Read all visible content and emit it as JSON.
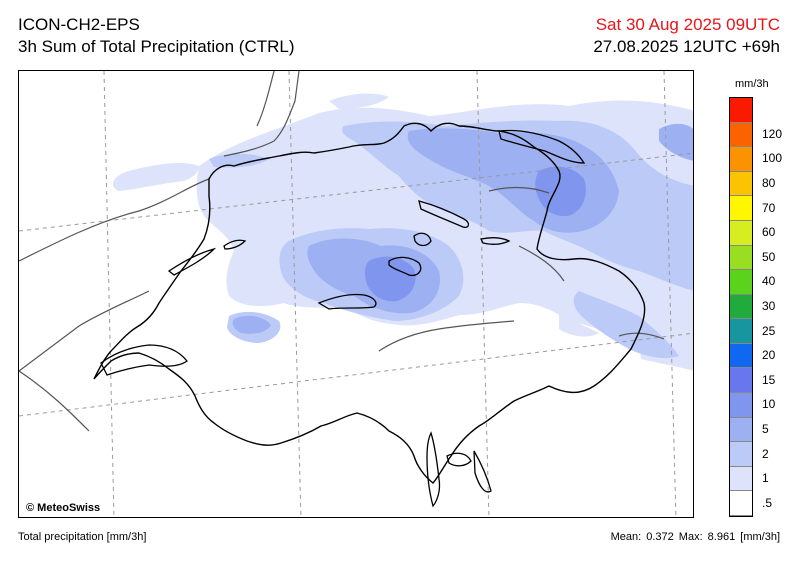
{
  "header": {
    "model": "ICON-CH2-EPS",
    "product": "3h Sum of Total Precipitation (CTRL)",
    "valid_time": "Sat 30 Aug 2025 09UTC",
    "run_info": "27.08.2025 12UTC +69h"
  },
  "map": {
    "credit": "© MeteoSwiss",
    "colors": {
      "border": "#000000",
      "lakes": "#000000",
      "other_borders": "#555555",
      "grid": "#9a9a9a"
    }
  },
  "legend": {
    "unit": "mm/3h",
    "levels": [
      {
        "label": ".5",
        "color": "#ffffff"
      },
      {
        "label": "1",
        "color": "#dde3fb"
      },
      {
        "label": "2",
        "color": "#bccaf7"
      },
      {
        "label": "5",
        "color": "#9cb0f2"
      },
      {
        "label": "10",
        "color": "#7f95ee"
      },
      {
        "label": "15",
        "color": "#6877ee"
      },
      {
        "label": "20",
        "color": "#0f67f2"
      },
      {
        "label": "25",
        "color": "#1796a0"
      },
      {
        "label": "30",
        "color": "#20ab3c"
      },
      {
        "label": "40",
        "color": "#5bd21c"
      },
      {
        "label": "50",
        "color": "#99de21"
      },
      {
        "label": "60",
        "color": "#d6ee20"
      },
      {
        "label": "70",
        "color": "#fff600"
      },
      {
        "label": "80",
        "color": "#fcc400"
      },
      {
        "label": "100",
        "color": "#fb9300"
      },
      {
        "label": "120",
        "color": "#fa6300"
      },
      {
        "label": "",
        "color": "#f91a00"
      }
    ]
  },
  "footer": {
    "variable": "Total precipitation [mm/3h]",
    "stats": "Mean:  0.372 Max:  8.961 [mm/3h]"
  }
}
